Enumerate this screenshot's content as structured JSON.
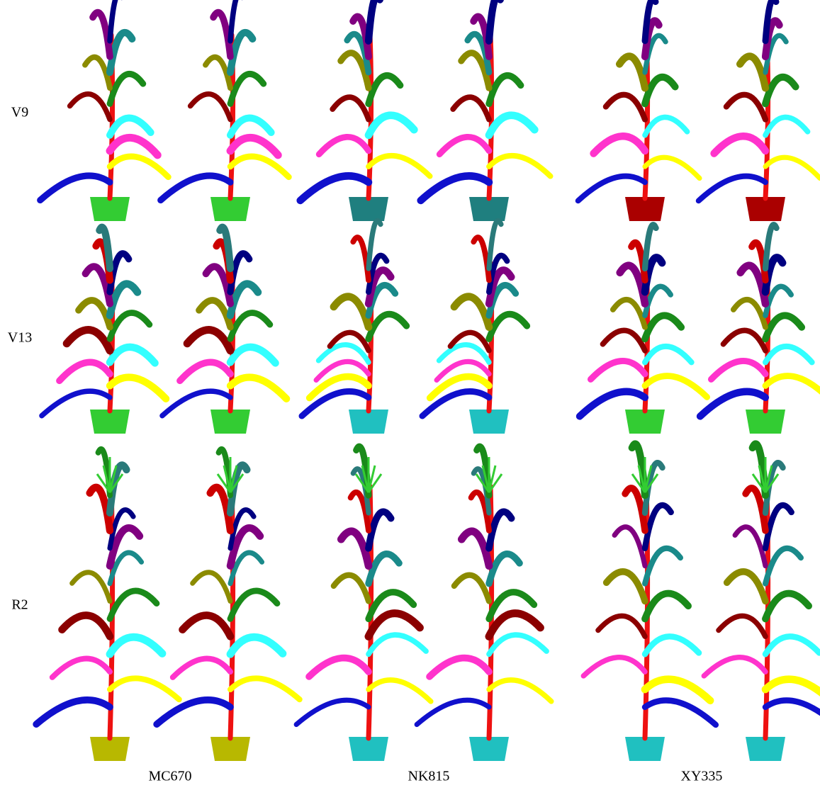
{
  "row_labels": [
    "V9",
    "V13",
    "R2"
  ],
  "column_labels": [
    "MC670",
    "NK815",
    "XY335"
  ]
}
